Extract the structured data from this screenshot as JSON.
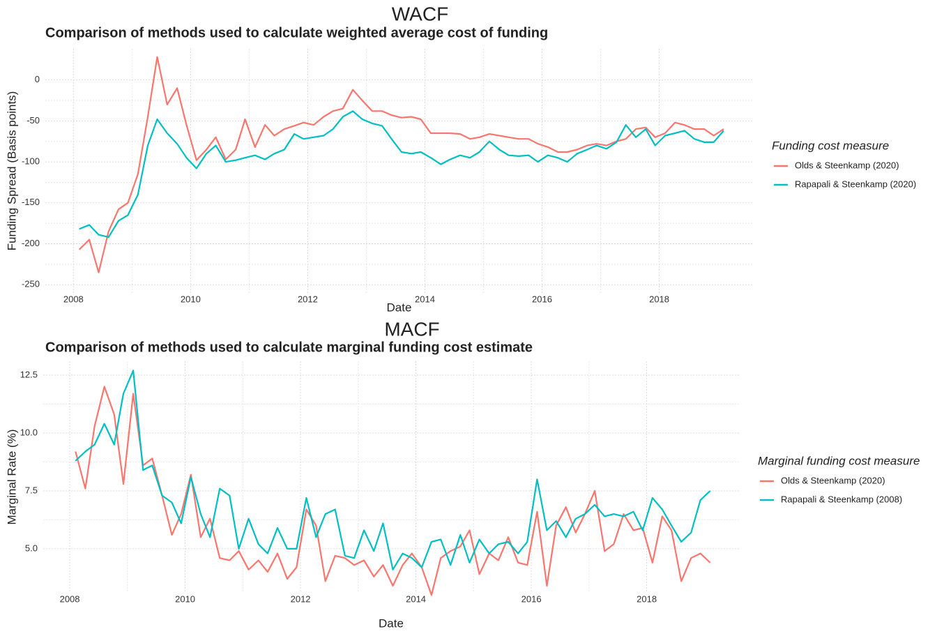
{
  "chart_data": [
    {
      "type": "line",
      "title": "WACF",
      "subtitle": "Comparison of methods used to calculate weighted average cost of funding",
      "x_label": "Date",
      "y_label": "Funding Spread (Basis points)",
      "legend_title": "Funding cost measure",
      "legend": "right",
      "grid": true,
      "x": [
        2008.1,
        2008.27,
        2008.43,
        2008.6,
        2008.77,
        2008.93,
        2009.1,
        2009.27,
        2009.43,
        2009.6,
        2009.77,
        2009.93,
        2010.1,
        2010.27,
        2010.43,
        2010.6,
        2010.77,
        2010.93,
        2011.1,
        2011.27,
        2011.43,
        2011.6,
        2011.77,
        2011.93,
        2012.1,
        2012.27,
        2012.43,
        2012.6,
        2012.77,
        2012.93,
        2013.1,
        2013.27,
        2013.43,
        2013.6,
        2013.77,
        2013.93,
        2014.1,
        2014.27,
        2014.43,
        2014.6,
        2014.77,
        2014.93,
        2015.1,
        2015.27,
        2015.43,
        2015.6,
        2015.77,
        2015.93,
        2016.1,
        2016.27,
        2016.43,
        2016.6,
        2016.77,
        2016.93,
        2017.1,
        2017.27,
        2017.43,
        2017.6,
        2017.77,
        2017.93,
        2018.1,
        2018.27,
        2018.43,
        2018.6,
        2018.77,
        2018.93,
        2019.1
      ],
      "xlim": [
        2007.52,
        2019.6
      ],
      "xticks": [
        2008,
        2010,
        2012,
        2014,
        2016,
        2018
      ],
      "ylim": [
        -260,
        38
      ],
      "yticks": [
        -250,
        -200,
        -150,
        -100,
        -50,
        0
      ],
      "series": [
        {
          "name": "Olds & Steenkamp (2020)",
          "color": "#F8766D",
          "values": [
            -207,
            -195,
            -235,
            -185,
            -158,
            -150,
            -115,
            -45,
            28,
            -30,
            -10,
            -55,
            -98,
            -85,
            -70,
            -97,
            -85,
            -48,
            -82,
            -55,
            -68,
            -60,
            -56,
            -52,
            -55,
            -45,
            -38,
            -35,
            -12,
            -25,
            -38,
            -38,
            -43,
            -46,
            -45,
            -48,
            -65,
            -65,
            -65,
            -66,
            -72,
            -70,
            -66,
            -68,
            -70,
            -72,
            -72,
            -78,
            -82,
            -88,
            -88,
            -85,
            -80,
            -78,
            -80,
            -75,
            -72,
            -60,
            -58,
            -70,
            -65,
            -52,
            -55,
            -60,
            -60,
            -68,
            -60
          ]
        },
        {
          "name": "Rapapali & Steenkamp (2020)",
          "color": "#00BFC4",
          "values": [
            -182,
            -177,
            -189,
            -192,
            -172,
            -165,
            -140,
            -80,
            -48,
            -65,
            -78,
            -95,
            -108,
            -90,
            -80,
            -100,
            -98,
            -95,
            -92,
            -97,
            -90,
            -85,
            -66,
            -72,
            -70,
            -68,
            -60,
            -45,
            -38,
            -48,
            -53,
            -56,
            -72,
            -88,
            -90,
            -88,
            -95,
            -103,
            -97,
            -92,
            -95,
            -88,
            -75,
            -85,
            -92,
            -93,
            -92,
            -100,
            -92,
            -95,
            -100,
            -90,
            -85,
            -80,
            -84,
            -76,
            -55,
            -70,
            -60,
            -80,
            -68,
            -65,
            -62,
            -72,
            -76,
            -76,
            -62
          ]
        }
      ]
    },
    {
      "type": "line",
      "title": "MACF",
      "subtitle": "Comparison of methods used to calculate marginal funding cost estimate",
      "x_label": "Date",
      "y_label": "Marginal Rate (%)",
      "legend_title": "Marginal funding cost measure",
      "legend": "right",
      "grid": true,
      "x": [
        2008.1,
        2008.27,
        2008.43,
        2008.6,
        2008.77,
        2008.93,
        2009.1,
        2009.27,
        2009.43,
        2009.6,
        2009.77,
        2009.93,
        2010.1,
        2010.27,
        2010.43,
        2010.6,
        2010.77,
        2010.93,
        2011.1,
        2011.27,
        2011.43,
        2011.6,
        2011.77,
        2011.93,
        2012.1,
        2012.27,
        2012.43,
        2012.6,
        2012.77,
        2012.93,
        2013.1,
        2013.27,
        2013.43,
        2013.6,
        2013.77,
        2013.93,
        2014.1,
        2014.27,
        2014.43,
        2014.6,
        2014.77,
        2014.93,
        2015.1,
        2015.27,
        2015.43,
        2015.6,
        2015.77,
        2015.93,
        2016.1,
        2016.27,
        2016.43,
        2016.6,
        2016.77,
        2016.93,
        2017.1,
        2017.27,
        2017.43,
        2017.6,
        2017.77,
        2017.93,
        2018.1,
        2018.27,
        2018.43,
        2018.6,
        2018.77,
        2018.93,
        2019.1
      ],
      "xlim": [
        2007.54,
        2019.6
      ],
      "xticks": [
        2008,
        2010,
        2012,
        2014,
        2016,
        2018
      ],
      "ylim": [
        3.1,
        13.1
      ],
      "yticks": [
        {
          "value": 5,
          "label": "5.0"
        },
        7.5,
        {
          "value": 10,
          "label": "10.0"
        },
        12.5
      ],
      "series": [
        {
          "name": "Olds & Steenkamp (2020)",
          "color": "#F8766D",
          "values": [
            9.2,
            7.6,
            10.3,
            12.0,
            10.8,
            7.8,
            11.7,
            8.6,
            8.9,
            7.3,
            5.6,
            6.5,
            8.2,
            5.5,
            6.3,
            4.6,
            4.5,
            4.9,
            4.1,
            4.5,
            4.0,
            4.8,
            3.7,
            4.2,
            6.7,
            6.0,
            3.6,
            4.7,
            4.6,
            4.3,
            4.5,
            3.8,
            4.3,
            3.4,
            4.3,
            4.8,
            4.2,
            3.0,
            4.6,
            4.9,
            5.1,
            5.8,
            3.9,
            4.8,
            4.5,
            5.5,
            4.4,
            4.3,
            6.6,
            3.4,
            6.0,
            6.8,
            5.7,
            6.5,
            7.5,
            4.9,
            5.2,
            6.5,
            5.8,
            5.9,
            4.4,
            6.4,
            5.8,
            3.6,
            4.6,
            4.8,
            4.4
          ]
        },
        {
          "name": "Rapapali & Steenkamp (2008)",
          "color": "#00BFC4",
          "values": [
            8.8,
            9.2,
            9.5,
            10.4,
            9.5,
            11.7,
            12.7,
            8.4,
            8.6,
            7.3,
            7.0,
            6.1,
            8.1,
            6.5,
            5.5,
            7.6,
            7.3,
            5.0,
            6.3,
            5.2,
            4.8,
            5.9,
            5.0,
            5.0,
            7.2,
            5.5,
            6.5,
            6.7,
            4.7,
            4.6,
            5.8,
            4.9,
            6.1,
            4.1,
            4.8,
            4.6,
            4.2,
            5.3,
            5.4,
            4.3,
            5.6,
            4.4,
            5.4,
            4.8,
            5.2,
            5.3,
            4.8,
            5.3,
            8.0,
            5.8,
            6.2,
            5.5,
            6.3,
            6.5,
            6.9,
            6.4,
            6.5,
            6.4,
            6.6,
            5.8,
            7.2,
            6.7,
            6.0,
            5.3,
            5.7,
            7.1,
            7.5
          ]
        }
      ]
    }
  ]
}
